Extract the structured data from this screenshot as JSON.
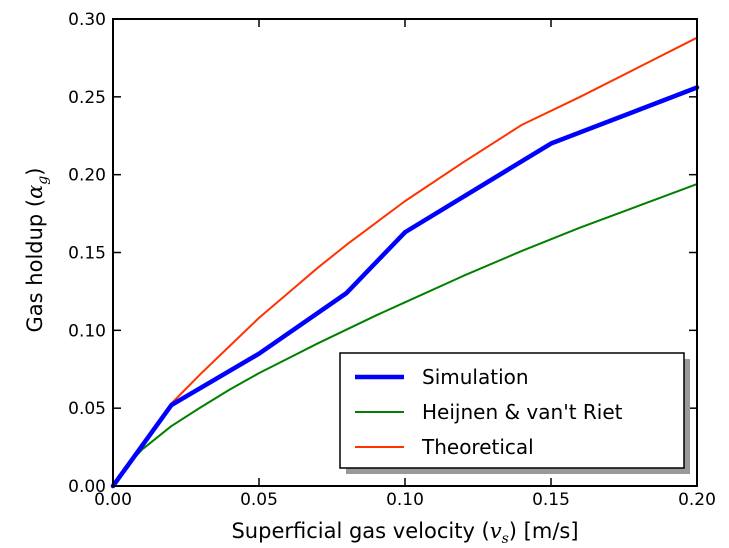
{
  "chart_data": {
    "type": "line",
    "xlabel": {
      "prefix": "Superficial gas velocity (",
      "sym": "v",
      "sub": "s",
      "suffix": ") [m/s]"
    },
    "ylabel": {
      "prefix": "Gas holdup (",
      "sym": "α",
      "sub": "g",
      "suffix": ")"
    },
    "xlim": [
      0,
      0.2
    ],
    "ylim": [
      0,
      0.3
    ],
    "xticks": [
      0.0,
      0.05,
      0.1,
      0.15,
      0.2
    ],
    "xtick_labels": [
      "0.00",
      "0.05",
      "0.10",
      "0.15",
      "0.20"
    ],
    "yticks": [
      0.0,
      0.05,
      0.1,
      0.15,
      0.2,
      0.25,
      0.3
    ],
    "ytick_labels": [
      "0.00",
      "0.05",
      "0.10",
      "0.15",
      "0.20",
      "0.25",
      "0.30"
    ],
    "grid": false,
    "legend_position": "lower-right",
    "series": [
      {
        "name": "Simulation",
        "color": "#0000ff",
        "x": [
          0.0,
          0.02,
          0.05,
          0.08,
          0.1,
          0.15,
          0.2
        ],
        "y": [
          0.0,
          0.052,
          0.085,
          0.124,
          0.163,
          0.22,
          0.256
        ]
      },
      {
        "name": "Heijnen & van't Riet",
        "color": "#008000",
        "x": [
          0.0,
          0.005,
          0.01,
          0.02,
          0.03,
          0.04,
          0.05,
          0.06,
          0.07,
          0.08,
          0.09,
          0.1,
          0.12,
          0.14,
          0.16,
          0.18,
          0.2
        ],
        "y": [
          0.0,
          0.0135,
          0.0235,
          0.0385,
          0.0505,
          0.062,
          0.0725,
          0.082,
          0.0915,
          0.1005,
          0.1095,
          0.118,
          0.135,
          0.151,
          0.166,
          0.18,
          0.194
        ]
      },
      {
        "name": "Theoretical",
        "color": "#ff3300",
        "x": [
          0.0,
          0.005,
          0.01,
          0.02,
          0.03,
          0.04,
          0.05,
          0.06,
          0.07,
          0.08,
          0.09,
          0.1,
          0.12,
          0.14,
          0.16,
          0.18,
          0.2
        ],
        "y": [
          0.0,
          0.014,
          0.027,
          0.053,
          0.072,
          0.09,
          0.108,
          0.124,
          0.14,
          0.155,
          0.169,
          0.183,
          0.208,
          0.232,
          0.25,
          0.269,
          0.288
        ]
      }
    ]
  }
}
